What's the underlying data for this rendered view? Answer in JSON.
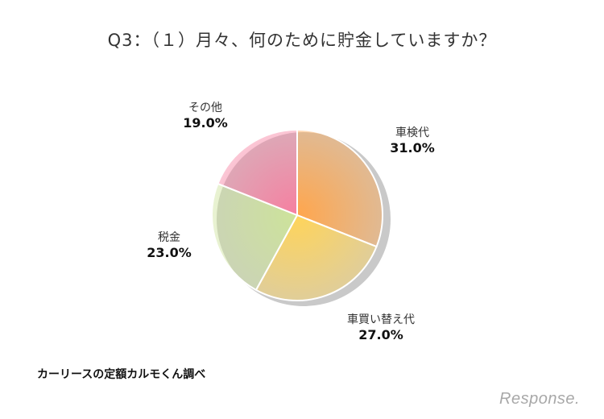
{
  "chart_data": {
    "type": "pie",
    "title": "Q3：（１）月々、何のために貯金していますか？",
    "slices": [
      {
        "label": "車検代",
        "value": 31.0,
        "value_label": "31.0%",
        "color": "#FFA64D"
      },
      {
        "label": "車買い替え代",
        "value": 27.0,
        "value_label": "27.0%",
        "color": "#FFD45A"
      },
      {
        "label": "税金",
        "value": 23.0,
        "value_label": "23.0%",
        "color": "#CDE39A"
      },
      {
        "label": "その他",
        "value": 19.0,
        "value_label": "19.0%",
        "color": "#F67FA0"
      }
    ]
  },
  "source": "カーリースの定額カルモくん調べ",
  "watermark": "Response."
}
